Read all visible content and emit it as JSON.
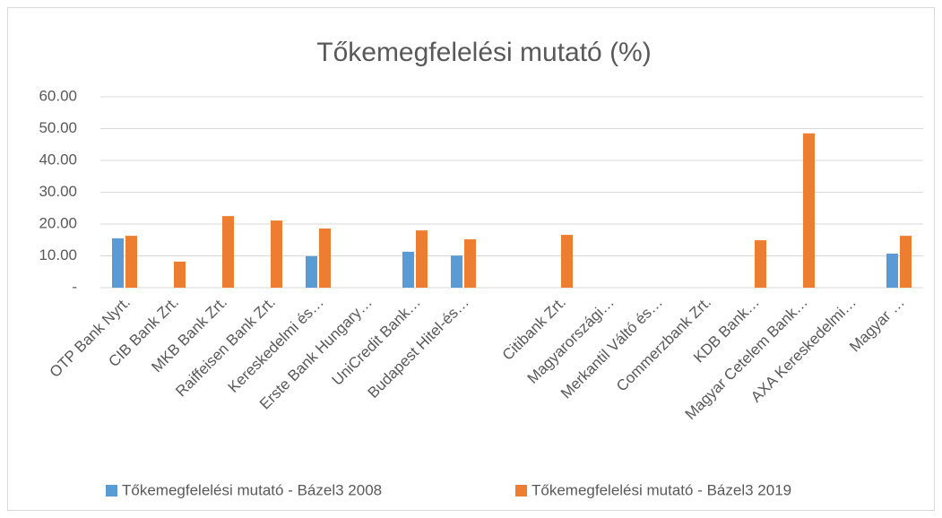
{
  "chart_data": {
    "type": "bar",
    "title": "Tőkemegfelelési mutató (%)",
    "categories": [
      "OTP Bank Nyrt.",
      "CIB Bank Zrt.",
      "MKB Bank Zrt.",
      "Raiffeisen Bank Zrt.",
      "Kereskedelmi és…",
      "Erste Bank Hungary…",
      "UniCredit Bank…",
      "Budapest Hitel-és…",
      null,
      "Citibank Zrt.",
      "Magyarországi…",
      "Merkantil Váltó és…",
      "Commerzbank Zrt.",
      "KDB Bank…",
      "Magyar Cetelem Bank…",
      "AXA Kereskedelmi…",
      "Magyar …"
    ],
    "series": [
      {
        "name": "Tőkemegfelelési mutató - Bázel3  2008",
        "color": "#5b9bd5",
        "values": [
          15.5,
          null,
          null,
          null,
          9.9,
          null,
          11.3,
          10.1,
          null,
          null,
          null,
          null,
          null,
          null,
          null,
          null,
          10.7
        ]
      },
      {
        "name": "Tőkemegfelelési mutató - Bázel3  2019",
        "color": "#ed7d31",
        "values": [
          16.3,
          8.2,
          22.5,
          21.1,
          18.6,
          null,
          18.0,
          15.2,
          null,
          16.6,
          null,
          null,
          null,
          14.9,
          48.5,
          null,
          16.3
        ]
      }
    ],
    "ylim": [
      0,
      60
    ],
    "yticks": [
      {
        "value": 0,
        "label": "-"
      },
      {
        "value": 10,
        "label": "10.00"
      },
      {
        "value": 20,
        "label": "20.00"
      },
      {
        "value": 30,
        "label": "30.00"
      },
      {
        "value": 40,
        "label": "40.00"
      },
      {
        "value": 50,
        "label": "50.00"
      },
      {
        "value": 60,
        "label": "60.00"
      }
    ],
    "grid": true
  }
}
